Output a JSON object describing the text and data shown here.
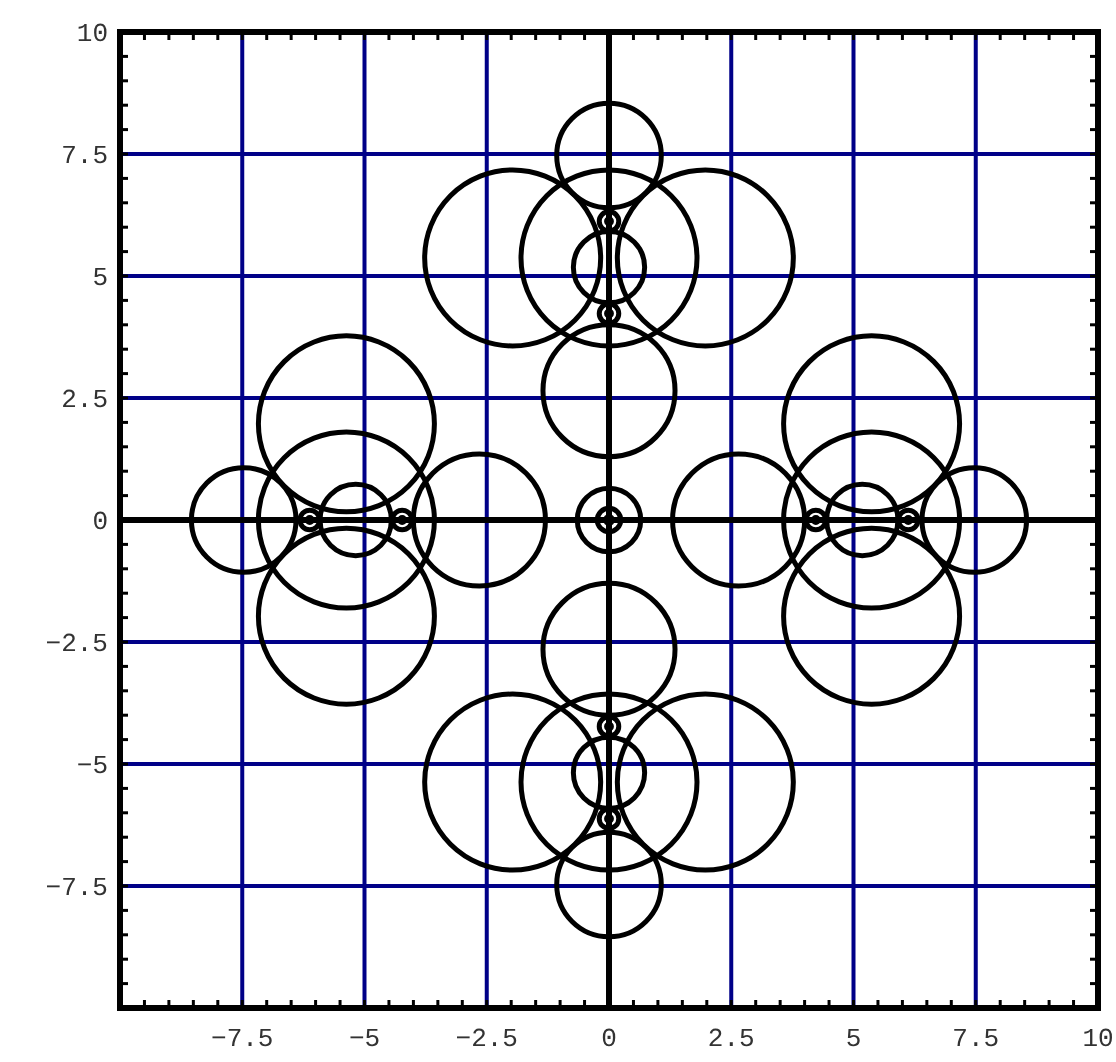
{
  "chart_data": {
    "type": "bubble",
    "xlim": [
      -10,
      10
    ],
    "ylim": [
      -10,
      10
    ],
    "xticks": [
      -7.5,
      -5,
      -2.5,
      0,
      2.5,
      5,
      7.5,
      10
    ],
    "yticks": [
      -7.5,
      -5,
      -2.5,
      0,
      2.5,
      5,
      7.5,
      10
    ],
    "grid": true,
    "series": [
      {
        "color": "#000000",
        "x": [
          0,
          -1.97,
          1.97,
          0,
          0,
          0,
          0,
          0,
          0,
          0,
          0,
          -1.97,
          1.97,
          0,
          0,
          0,
          0,
          0,
          0,
          0,
          -5.37,
          -5.37,
          -5.37,
          -7.47,
          -2.65,
          -5.18,
          -6.12,
          -6.12,
          -4.23,
          -4.23,
          5.37,
          5.37,
          5.37,
          7.47,
          2.65,
          5.18,
          6.12,
          6.12,
          4.23,
          4.23,
          0,
          0,
          0
        ],
        "values": [
          5.37,
          5.37,
          5.37,
          7.47,
          2.65,
          5.18,
          6.12,
          6.12,
          4.23,
          4.23,
          -5.37,
          -5.37,
          -5.37,
          -7.47,
          -2.65,
          -5.18,
          -6.12,
          -6.12,
          -4.23,
          -4.23,
          0,
          1.97,
          -1.97,
          0,
          0,
          0,
          0,
          0,
          0,
          0,
          0,
          1.97,
          -1.97,
          0,
          0,
          0,
          0,
          0,
          0,
          0,
          0,
          0,
          0
        ],
        "sizes": [
          1,
          1,
          1,
          0.353,
          0.563,
          0.164,
          0.0011,
          0.0123,
          0.0011,
          0.0123,
          1,
          1,
          1,
          0.353,
          0.563,
          0.164,
          0.0011,
          0.0123,
          0.0011,
          0.0123,
          1,
          1,
          1,
          0.353,
          0.563,
          0.164,
          0.0123,
          0.0011,
          0.0123,
          0.0011,
          1,
          1,
          1,
          0.353,
          0.563,
          0.164,
          0.0123,
          0.0011,
          0.0123,
          0.0011,
          0.13,
          0.0178,
          0.002
        ]
      }
    ]
  }
}
